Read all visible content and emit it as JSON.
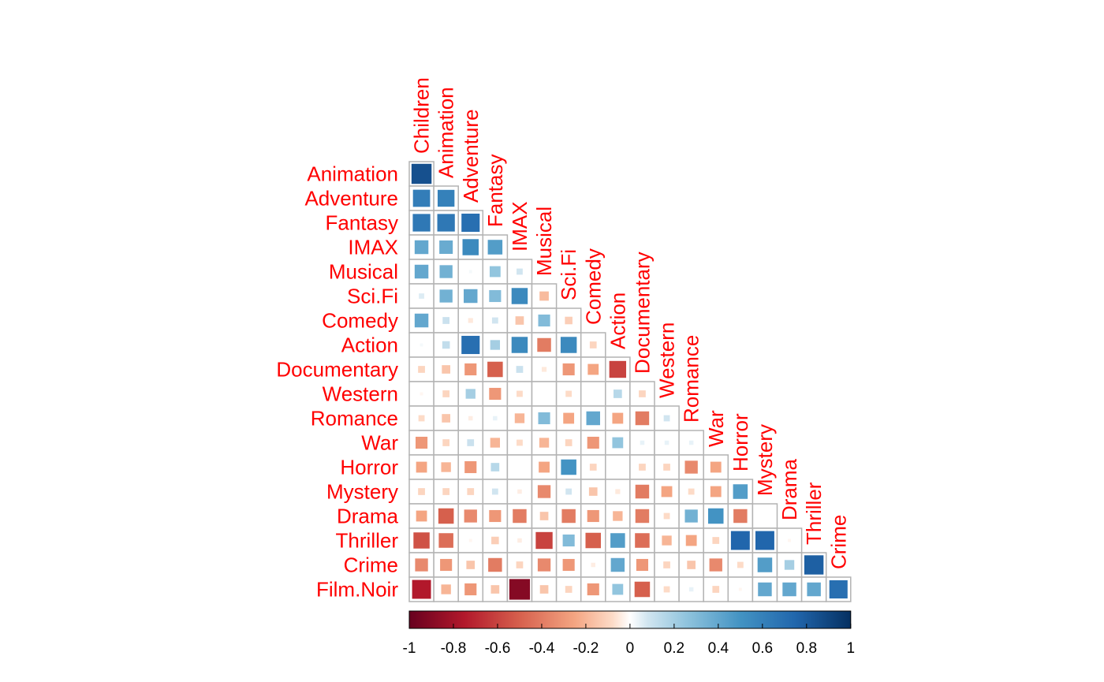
{
  "chart_data": {
    "type": "heatmap",
    "variant": "correlation-matrix-lower-triangle-squares",
    "row_labels": [
      "Animation",
      "Adventure",
      "Fantasy",
      "IMAX",
      "Musical",
      "Sci.Fi",
      "Comedy",
      "Action",
      "Documentary",
      "Western",
      "Romance",
      "War",
      "Horror",
      "Mystery",
      "Drama",
      "Thriller",
      "Crime",
      "Film.Noir"
    ],
    "column_labels": [
      "Children",
      "Animation",
      "Adventure",
      "Fantasy",
      "IMAX",
      "Musical",
      "Sci.Fi",
      "Comedy",
      "Action",
      "Documentary",
      "Western",
      "Romance",
      "War",
      "Horror",
      "Mystery",
      "Drama",
      "Thriller",
      "Crime"
    ],
    "values": [
      [
        0.85
      ],
      [
        0.62,
        0.6
      ],
      [
        0.65,
        0.65,
        0.7
      ],
      [
        0.4,
        0.38,
        0.55,
        0.45
      ],
      [
        0.4,
        0.35,
        0.02,
        0.25,
        0.08
      ],
      [
        0.06,
        0.35,
        0.4,
        0.3,
        0.55,
        -0.18
      ],
      [
        0.4,
        0.1,
        -0.05,
        0.08,
        -0.15,
        0.3,
        -0.12
      ],
      [
        0.02,
        0.12,
        0.7,
        0.2,
        0.55,
        -0.4,
        0.55,
        -0.1
      ],
      [
        -0.1,
        -0.15,
        -0.3,
        -0.5,
        0.1,
        -0.05,
        -0.3,
        -0.25,
        -0.6
      ],
      [
        -0.02,
        -0.1,
        0.2,
        -0.3,
        -0.08,
        0.0,
        -0.08,
        0.0,
        0.15,
        -0.1
      ],
      [
        -0.08,
        -0.15,
        -0.04,
        0.04,
        -0.2,
        0.3,
        -0.25,
        0.4,
        -0.25,
        -0.4,
        0.08
      ],
      [
        -0.3,
        -0.1,
        0.1,
        -0.2,
        -0.08,
        -0.2,
        -0.1,
        -0.3,
        0.25,
        0.04,
        0.04,
        0.04
      ],
      [
        -0.25,
        -0.2,
        -0.3,
        0.15,
        0.0,
        -0.25,
        0.5,
        -0.1,
        0.0,
        -0.1,
        -0.1,
        -0.35,
        -0.25
      ],
      [
        -0.1,
        -0.1,
        -0.1,
        0.08,
        -0.04,
        -0.35,
        0.08,
        -0.15,
        -0.05,
        -0.4,
        -0.25,
        -0.08,
        -0.25,
        0.45
      ],
      [
        -0.25,
        -0.5,
        -0.35,
        -0.3,
        -0.4,
        -0.15,
        -0.4,
        -0.3,
        -0.2,
        -0.4,
        -0.08,
        0.35,
        0.5,
        -0.4,
        0.0
      ],
      [
        -0.55,
        -0.45,
        -0.02,
        -0.12,
        -0.04,
        -0.6,
        0.3,
        -0.5,
        0.45,
        -0.45,
        -0.2,
        -0.25,
        -0.1,
        0.75,
        0.75,
        -0.02
      ],
      [
        -0.35,
        -0.3,
        -0.15,
        -0.4,
        -0.1,
        -0.35,
        -0.3,
        -0.04,
        0.4,
        -0.3,
        -0.1,
        -0.15,
        -0.35,
        -0.08,
        0.45,
        0.2,
        0.78
      ],
      [
        -0.75,
        -0.2,
        -0.3,
        -0.15,
        -0.9,
        -0.15,
        -0.1,
        -0.3,
        0.25,
        -0.5,
        -0.08,
        0.04,
        -0.1,
        -0.02,
        0.4,
        0.4,
        0.4,
        0.7
      ]
    ],
    "colorbar": {
      "ticks": [
        "-1",
        "-0.8",
        "-0.6",
        "-0.4",
        "-0.2",
        "0",
        "0.2",
        "0.4",
        "0.6",
        "0.8",
        "1"
      ],
      "range": [
        -1,
        1
      ],
      "stops": [
        {
          "v": -1.0,
          "c": "#67001f"
        },
        {
          "v": -0.75,
          "c": "#b2182b"
        },
        {
          "v": -0.5,
          "c": "#d6604d"
        },
        {
          "v": -0.25,
          "c": "#f4a582"
        },
        {
          "v": -0.08,
          "c": "#fddbc7"
        },
        {
          "v": 0.0,
          "c": "#ffffff"
        },
        {
          "v": 0.08,
          "c": "#d1e5f0"
        },
        {
          "v": 0.25,
          "c": "#92c5de"
        },
        {
          "v": 0.5,
          "c": "#4393c3"
        },
        {
          "v": 0.75,
          "c": "#2166ac"
        },
        {
          "v": 1.0,
          "c": "#053061"
        }
      ]
    },
    "colors": {
      "label_color": "#ff0000",
      "grid_color": "#b3b3b3"
    }
  }
}
